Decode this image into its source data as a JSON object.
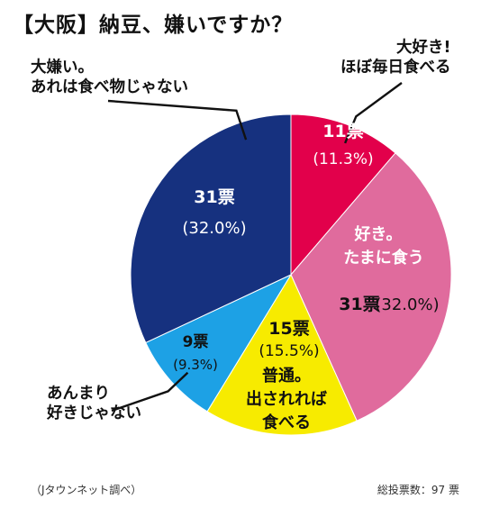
{
  "title": "【大阪】納豆、嫌いですか？",
  "footer": {
    "source": "（Jタウンネット調べ）",
    "total": "総投票数：97 票"
  },
  "chart_data": {
    "type": "pie",
    "title": "【大阪】納豆、嫌いですか？",
    "start": "12 o'clock, clockwise",
    "slices": [
      {
        "label_lines": [
          "大好き!",
          "ほぼ毎日食べる"
        ],
        "votes_text": "11票",
        "pct_text": "(11.3%)",
        "votes": 11,
        "percent": 11.3,
        "color": "#e2004b"
      },
      {
        "label_lines": [
          "好き。",
          "たまに食う"
        ],
        "votes_text": "31票",
        "pct_text": "(32.0%)",
        "votes": 31,
        "percent": 32.0,
        "color": "#e06b9d"
      },
      {
        "label_lines": [
          "普通。",
          "出されれば",
          "食べる"
        ],
        "votes_text": "15票",
        "pct_text": "(15.5%)",
        "votes": 15,
        "percent": 15.5,
        "color": "#f7eb00"
      },
      {
        "label_lines": [
          "あんまり",
          "好きじゃない"
        ],
        "votes_text": "9票",
        "pct_text": "(9.3%)",
        "votes": 9,
        "percent": 9.3,
        "color": "#1da1e5"
      },
      {
        "label_lines": [
          "大嫌い。",
          "あれは食べ物じゃない"
        ],
        "votes_text": "31票",
        "pct_text": "(32.0%)",
        "votes": 31,
        "percent": 32.0,
        "color": "#16317f"
      }
    ]
  }
}
